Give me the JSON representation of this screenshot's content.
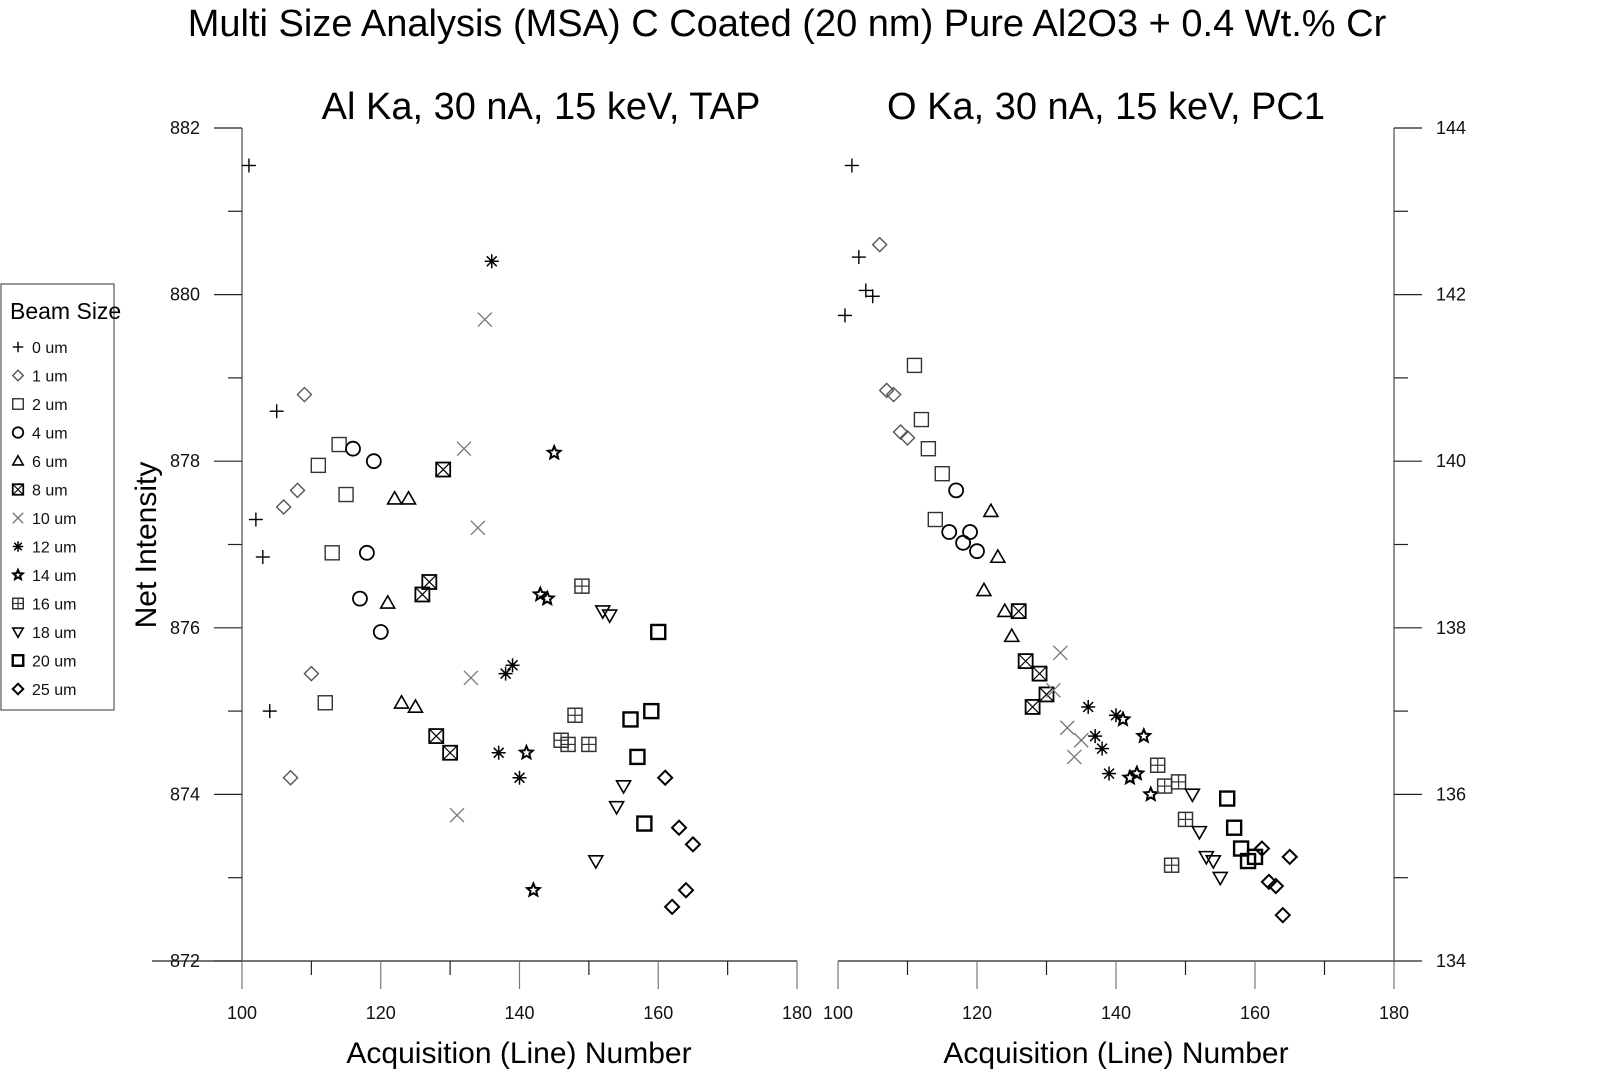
{
  "chart_data": [
    {
      "type": "scatter",
      "title": "Multi Size Analysis (MSA) C Coated (20 nm) Pure Al2O3 + 0.4 Wt.% Cr",
      "subtitle": "Al Ka, 30 nA, 15 keV, TAP",
      "xlabel": "Acquisition (Line) Number",
      "ylabel": "Net Intensity",
      "xlim": [
        100,
        180
      ],
      "ylim": [
        872,
        882
      ],
      "xticks": [
        "100",
        "120",
        "140",
        "160",
        "180"
      ],
      "yticks": [
        "872",
        "874",
        "876",
        "878",
        "880",
        "882"
      ],
      "y_axis_side": "left",
      "series": [
        {
          "name": "0 um",
          "marker": "plus",
          "color": "#000000",
          "points": [
            [
              101,
              881.55
            ],
            [
              102,
              877.3
            ],
            [
              103,
              876.85
            ],
            [
              104,
              875.0
            ],
            [
              105,
              878.6
            ]
          ]
        },
        {
          "name": "1 um",
          "marker": "diamond",
          "color": "#555555",
          "points": [
            [
              106,
              877.45
            ],
            [
              107,
              874.2
            ],
            [
              108,
              877.65
            ],
            [
              109,
              878.8
            ],
            [
              110,
              875.45
            ]
          ]
        },
        {
          "name": "2 um",
          "marker": "square",
          "color": "#333333",
          "points": [
            [
              111,
              877.95
            ],
            [
              112,
              875.1
            ],
            [
              113,
              876.9
            ],
            [
              114,
              878.2
            ],
            [
              115,
              877.6
            ]
          ]
        },
        {
          "name": "4 um",
          "marker": "circle",
          "color": "#000000",
          "points": [
            [
              116,
              878.15
            ],
            [
              117,
              876.35
            ],
            [
              118,
              876.9
            ],
            [
              119,
              878.0
            ],
            [
              120,
              875.95
            ]
          ]
        },
        {
          "name": "6 um",
          "marker": "triangle",
          "color": "#000000",
          "points": [
            [
              121,
              876.3
            ],
            [
              122,
              877.55
            ],
            [
              123,
              875.1
            ],
            [
              124,
              877.55
            ],
            [
              125,
              875.05
            ]
          ]
        },
        {
          "name": "8 um",
          "marker": "boxx",
          "color": "#000000",
          "points": [
            [
              126,
              876.4
            ],
            [
              127,
              876.55
            ],
            [
              128,
              874.7
            ],
            [
              129,
              877.9
            ],
            [
              130,
              874.5
            ]
          ]
        },
        {
          "name": "10 um",
          "marker": "x",
          "color": "#777777",
          "points": [
            [
              131,
              873.75
            ],
            [
              132,
              878.15
            ],
            [
              133,
              875.4
            ],
            [
              134,
              877.2
            ],
            [
              135,
              879.7
            ]
          ]
        },
        {
          "name": "12 um",
          "marker": "asterisk",
          "color": "#000000",
          "points": [
            [
              136,
              880.4
            ],
            [
              137,
              874.5
            ],
            [
              138,
              875.45
            ],
            [
              139,
              875.55
            ],
            [
              140,
              874.2
            ]
          ]
        },
        {
          "name": "14 um",
          "marker": "star",
          "color": "#000000",
          "points": [
            [
              141,
              874.5
            ],
            [
              142,
              872.85
            ],
            [
              143,
              876.4
            ],
            [
              144,
              876.35
            ],
            [
              145,
              878.1
            ]
          ]
        },
        {
          "name": "16 um",
          "marker": "boxplus",
          "color": "#333333",
          "points": [
            [
              146,
              874.65
            ],
            [
              147,
              874.6
            ],
            [
              148,
              874.95
            ],
            [
              149,
              876.5
            ],
            [
              150,
              874.6
            ]
          ]
        },
        {
          "name": "18 um",
          "marker": "triangle-down",
          "color": "#000000",
          "points": [
            [
              151,
              873.2
            ],
            [
              152,
              876.2
            ],
            [
              153,
              876.15
            ],
            [
              154,
              873.85
            ],
            [
              155,
              874.1
            ]
          ]
        },
        {
          "name": "20 um",
          "marker": "square-bold",
          "color": "#000000",
          "points": [
            [
              156,
              874.9
            ],
            [
              157,
              874.45
            ],
            [
              158,
              873.65
            ],
            [
              159,
              875.0
            ],
            [
              160,
              875.95
            ]
          ]
        },
        {
          "name": "25 um",
          "marker": "diamond-bold",
          "color": "#000000",
          "points": [
            [
              161,
              874.2
            ],
            [
              162,
              872.65
            ],
            [
              163,
              873.6
            ],
            [
              164,
              872.85
            ],
            [
              165,
              873.4
            ]
          ]
        }
      ]
    },
    {
      "type": "scatter",
      "subtitle": "O Ka, 30 nA, 15 keV, PC1",
      "xlabel": "Acquisition (Line) Number",
      "ylabel": "",
      "xlim": [
        100,
        180
      ],
      "ylim": [
        134,
        144
      ],
      "xticks": [
        "100",
        "120",
        "140",
        "160",
        "180"
      ],
      "yticks": [
        "134",
        "136",
        "138",
        "140",
        "142",
        "144"
      ],
      "y_axis_side": "right",
      "series": [
        {
          "name": "0 um",
          "marker": "plus",
          "color": "#000000",
          "points": [
            [
              101,
              141.75
            ],
            [
              102,
              143.55
            ],
            [
              103,
              142.45
            ],
            [
              104,
              142.05
            ],
            [
              105,
              141.98
            ]
          ]
        },
        {
          "name": "1 um",
          "marker": "diamond",
          "color": "#555555",
          "points": [
            [
              106,
              142.6
            ],
            [
              107,
              140.85
            ],
            [
              108,
              140.8
            ],
            [
              109,
              140.35
            ],
            [
              110,
              140.28
            ]
          ]
        },
        {
          "name": "2 um",
          "marker": "square",
          "color": "#333333",
          "points": [
            [
              111,
              141.15
            ],
            [
              112,
              140.5
            ],
            [
              113,
              140.15
            ],
            [
              114,
              139.3
            ],
            [
              115,
              139.85
            ]
          ]
        },
        {
          "name": "4 um",
          "marker": "circle",
          "color": "#000000",
          "points": [
            [
              116,
              139.15
            ],
            [
              117,
              139.65
            ],
            [
              118,
              139.02
            ],
            [
              119,
              139.15
            ],
            [
              120,
              138.92
            ]
          ]
        },
        {
          "name": "6 um",
          "marker": "triangle",
          "color": "#000000",
          "points": [
            [
              121,
              138.45
            ],
            [
              122,
              139.4
            ],
            [
              123,
              138.85
            ],
            [
              124,
              138.2
            ],
            [
              125,
              137.9
            ]
          ]
        },
        {
          "name": "8 um",
          "marker": "boxx",
          "color": "#000000",
          "points": [
            [
              126,
              138.2
            ],
            [
              127,
              137.6
            ],
            [
              128,
              137.05
            ],
            [
              129,
              137.45
            ],
            [
              130,
              137.2
            ]
          ]
        },
        {
          "name": "10 um",
          "marker": "x",
          "color": "#777777",
          "points": [
            [
              131,
              137.25
            ],
            [
              132,
              137.7
            ],
            [
              133,
              136.8
            ],
            [
              134,
              136.45
            ],
            [
              135,
              136.65
            ]
          ]
        },
        {
          "name": "12 um",
          "marker": "asterisk",
          "color": "#000000",
          "points": [
            [
              136,
              137.05
            ],
            [
              137,
              136.7
            ],
            [
              138,
              136.55
            ],
            [
              139,
              136.25
            ],
            [
              140,
              136.95
            ]
          ]
        },
        {
          "name": "14 um",
          "marker": "star",
          "color": "#000000",
          "points": [
            [
              141,
              136.9
            ],
            [
              142,
              136.2
            ],
            [
              143,
              136.25
            ],
            [
              144,
              136.7
            ],
            [
              145,
              136.0
            ]
          ]
        },
        {
          "name": "16 um",
          "marker": "boxplus",
          "color": "#333333",
          "points": [
            [
              146,
              136.35
            ],
            [
              147,
              136.1
            ],
            [
              148,
              135.15
            ],
            [
              149,
              136.15
            ],
            [
              150,
              135.7
            ]
          ]
        },
        {
          "name": "18 um",
          "marker": "triangle-down",
          "color": "#000000",
          "points": [
            [
              151,
              136.0
            ],
            [
              152,
              135.55
            ],
            [
              153,
              135.25
            ],
            [
              154,
              135.2
            ],
            [
              155,
              135.0
            ]
          ]
        },
        {
          "name": "20 um",
          "marker": "square-bold",
          "color": "#000000",
          "points": [
            [
              156,
              135.95
            ],
            [
              157,
              135.6
            ],
            [
              158,
              135.35
            ],
            [
              159,
              135.2
            ],
            [
              160,
              135.25
            ]
          ]
        },
        {
          "name": "25 um",
          "marker": "diamond-bold",
          "color": "#000000",
          "points": [
            [
              161,
              135.35
            ],
            [
              162,
              134.95
            ],
            [
              163,
              134.9
            ],
            [
              164,
              134.55
            ],
            [
              165,
              135.25
            ]
          ]
        }
      ]
    }
  ],
  "legend": {
    "title": "Beam Size",
    "placement": "left",
    "items": [
      "0 um",
      "1 um",
      "2 um",
      "4 um",
      "6 um",
      "8 um",
      "10 um",
      "12 um",
      "14 um",
      "16 um",
      "18 um",
      "20 um",
      "25 um"
    ]
  }
}
